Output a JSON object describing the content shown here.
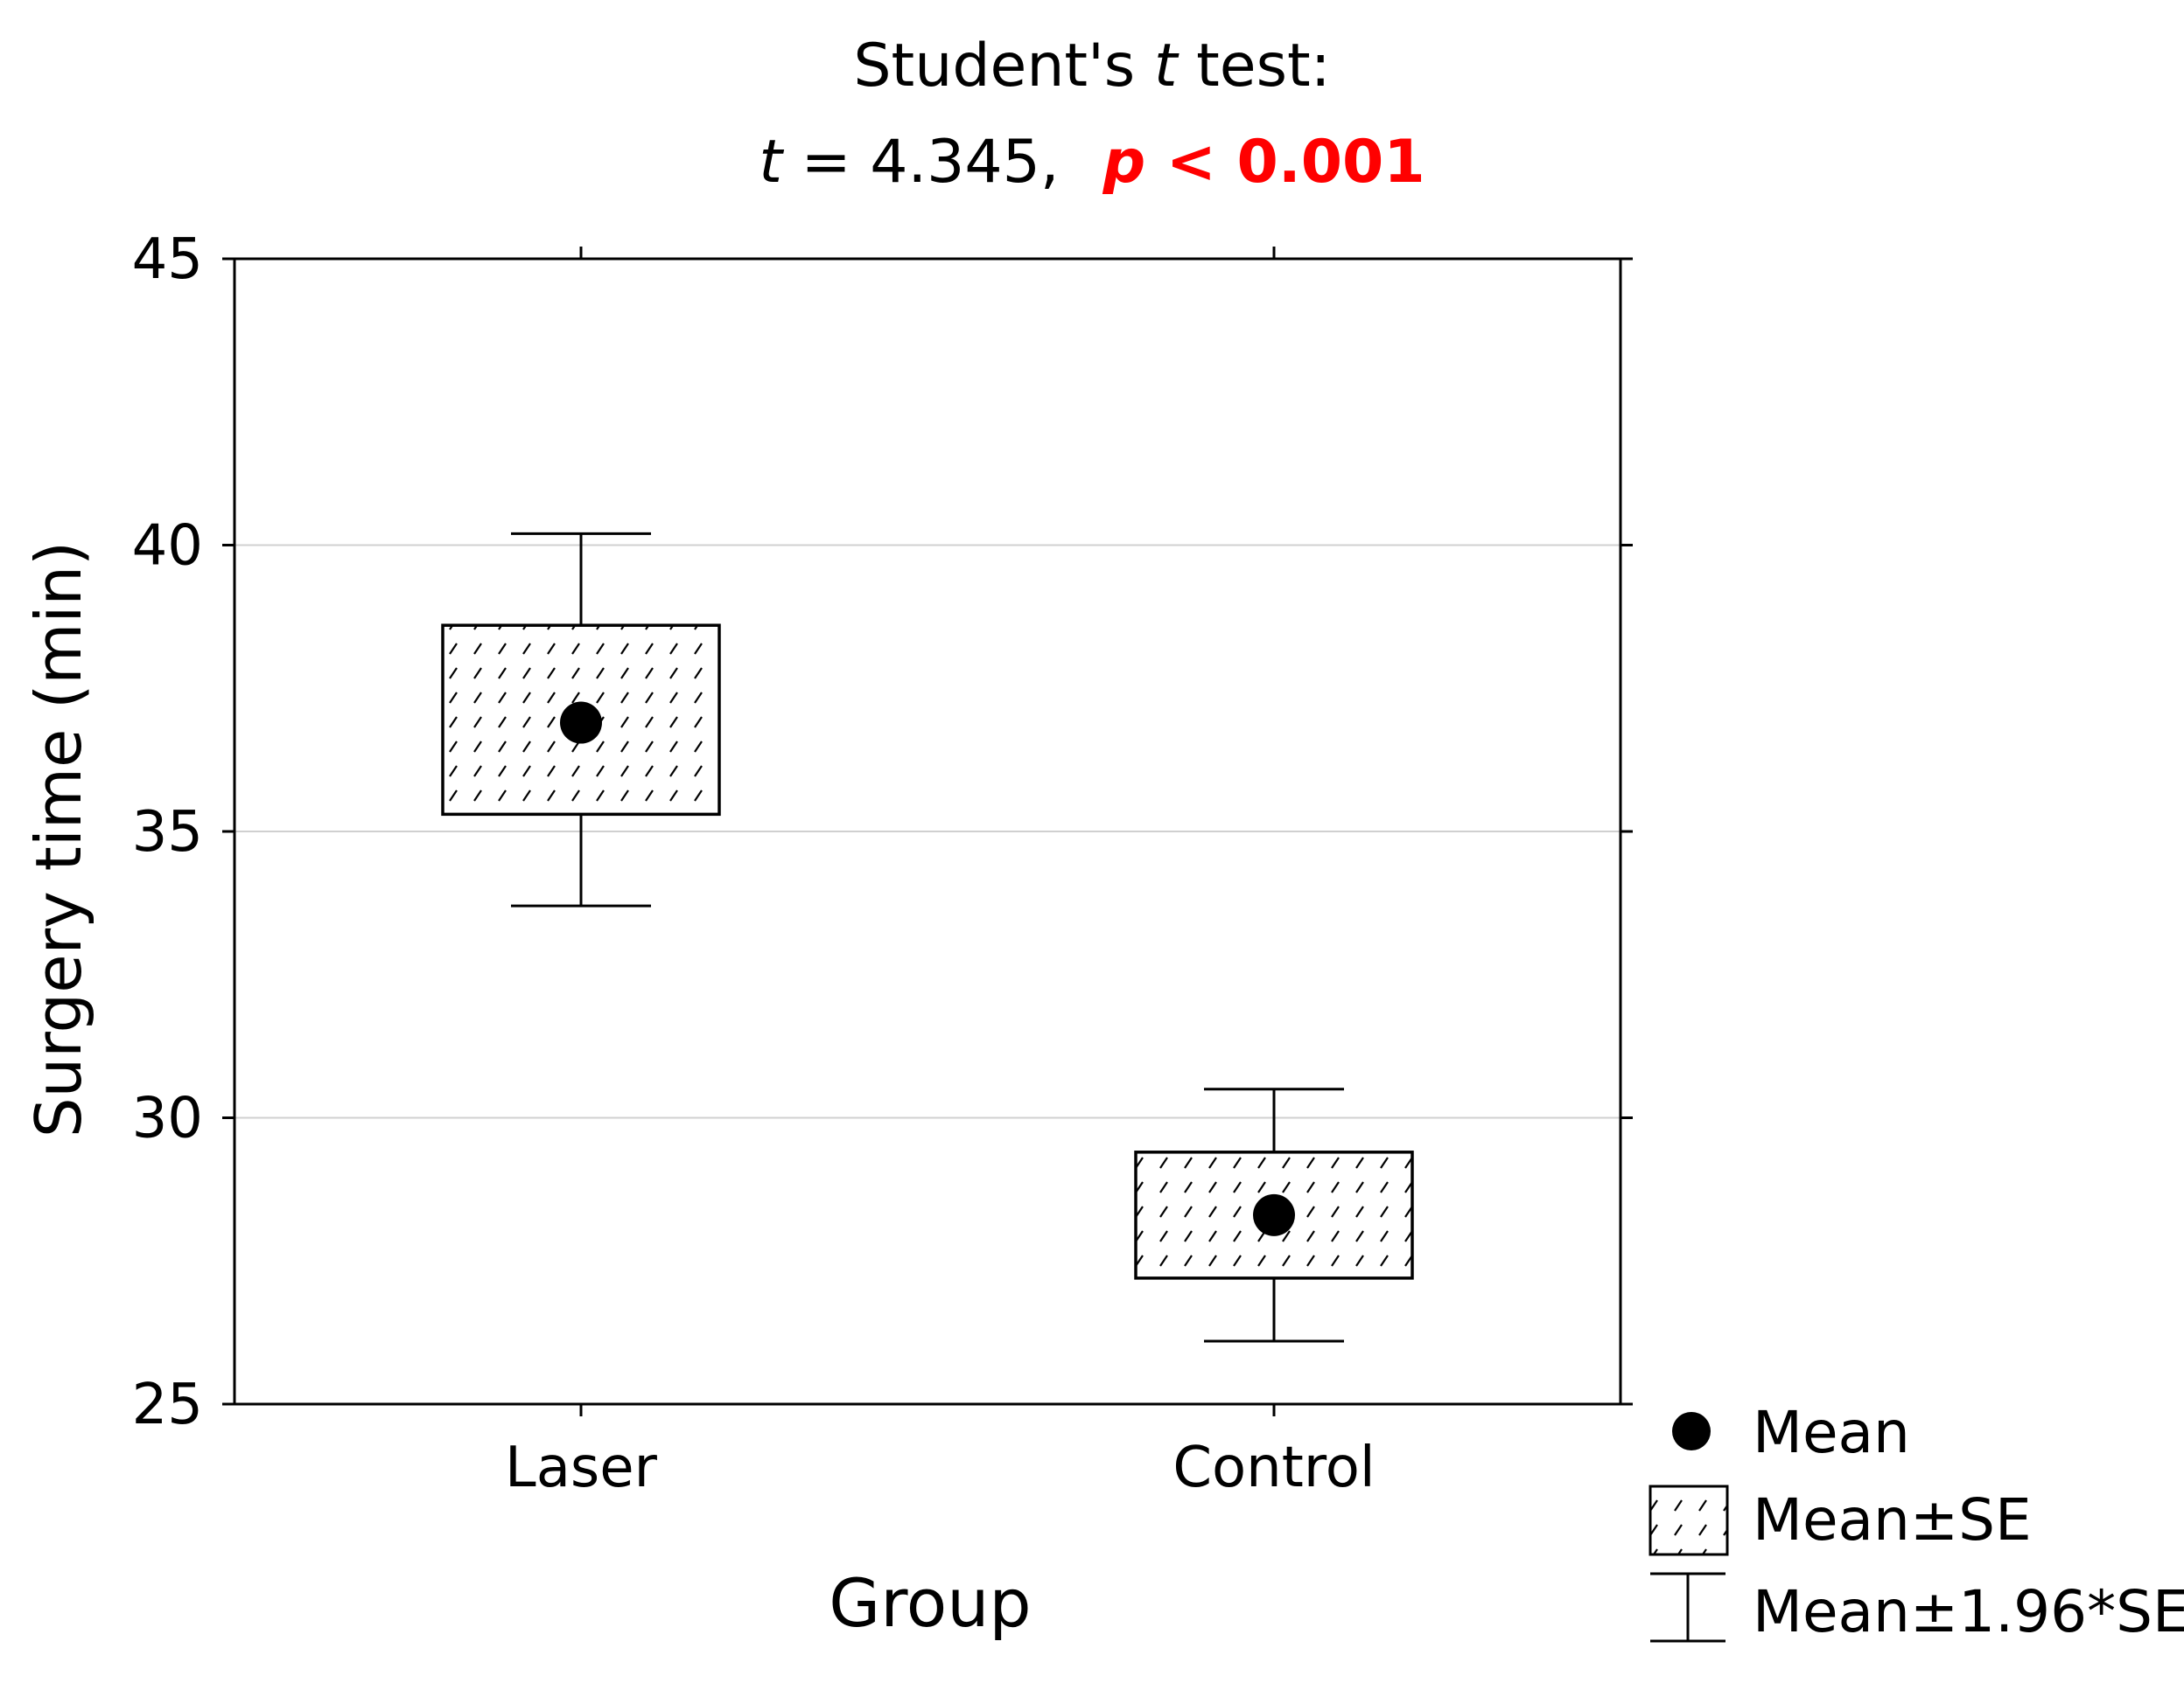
{
  "chart_data": {
    "type": "box",
    "title_line1": {
      "prefix": "Student's ",
      "italic": "t",
      "suffix": " test:"
    },
    "title_line2": {
      "stat_symbol": "t",
      "stat_text": " = 4.345,",
      "p_symbol": "p",
      "p_text": " < 0.001"
    },
    "xlabel": "Group",
    "ylabel": "Surgery time (min)",
    "ylim": [
      25,
      45
    ],
    "yticks": [
      "25",
      "30",
      "35",
      "40",
      "45"
    ],
    "grid": true,
    "legend_position": "bottom-right",
    "categories": [
      "Laser",
      "Control"
    ],
    "series": [
      {
        "category": "Laser",
        "mean": 36.9,
        "se_low": 35.3,
        "se_high": 38.6,
        "ci_low": 33.7,
        "ci_high": 40.2
      },
      {
        "category": "Control",
        "mean": 28.3,
        "se_low": 27.2,
        "se_high": 29.4,
        "ci_low": 26.1,
        "ci_high": 30.5
      }
    ],
    "legend": [
      "Mean",
      "Mean±SE",
      "Mean±1.96*SE"
    ],
    "colors": {
      "p_value": "#ff0000",
      "grid": "#d0d0d0",
      "frame": "#000000"
    }
  }
}
